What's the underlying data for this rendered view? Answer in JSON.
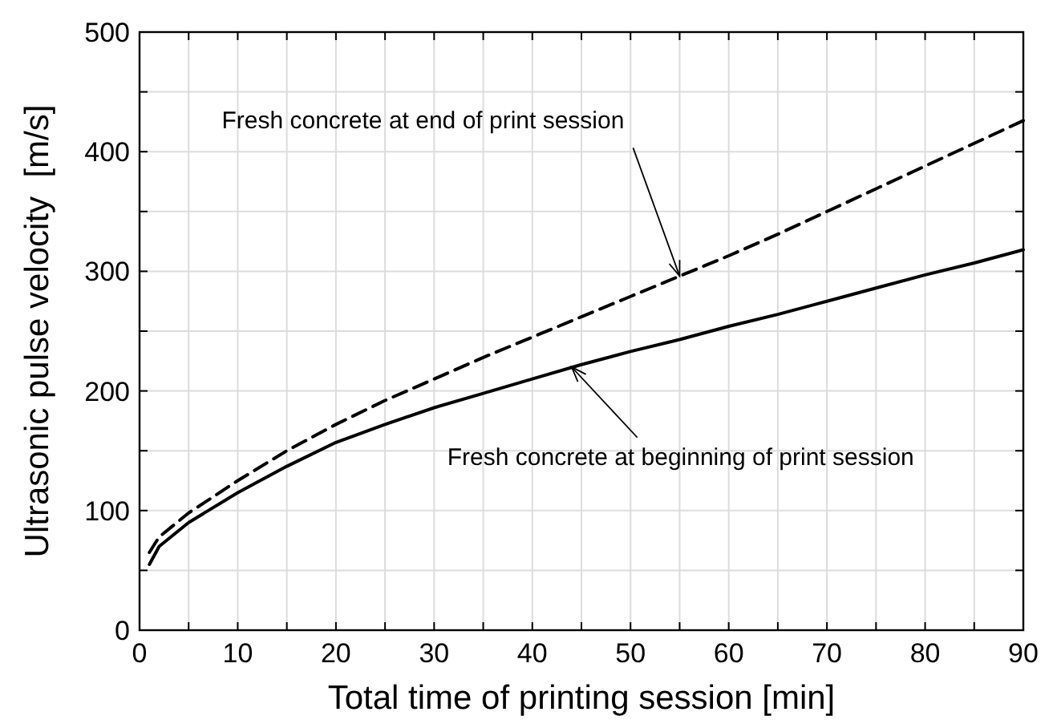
{
  "chart_data": {
    "type": "line",
    "xlabel": "Total time of printing session [min]",
    "ylabel": "Ultrasonic pulse velocity  [m/s]",
    "x": [
      1,
      2,
      5,
      10,
      15,
      20,
      25,
      30,
      35,
      40,
      45,
      50,
      55,
      60,
      65,
      70,
      75,
      80,
      85,
      90
    ],
    "series": [
      {
        "color": "#000000",
        "line_style": "dashed",
        "values": [
          65,
          78,
          98,
          125,
          150,
          172,
          192,
          210,
          228,
          245,
          262,
          279,
          296,
          313,
          331,
          350,
          369,
          388,
          407,
          426
        ]
      },
      {
        "color": "#000000",
        "line_style": "solid",
        "values": [
          55,
          70,
          90,
          115,
          137,
          157,
          172,
          186,
          198,
          210,
          222,
          233,
          243,
          254,
          264,
          275,
          286,
          297,
          307,
          318
        ]
      }
    ],
    "annotations": [
      {
        "text": "Fresh concrete at end of print session",
        "x": 55,
        "y": 296
      },
      {
        "text": "Fresh concrete at beginning of print session",
        "x": 44,
        "y": 220
      }
    ],
    "xlim": [
      0,
      90
    ],
    "ylim": [
      0,
      500
    ],
    "xticks": [
      0,
      {
        "value": 5,
        "label": null
      },
      10,
      {
        "value": 15,
        "label": null
      },
      20,
      {
        "value": 25,
        "label": null
      },
      30,
      {
        "value": 35,
        "label": null
      },
      40,
      {
        "value": 45,
        "label": null
      },
      50,
      {
        "value": 55,
        "label": null
      },
      60,
      {
        "value": 65,
        "label": null
      },
      70,
      {
        "value": 75,
        "label": null
      },
      80,
      {
        "value": 85,
        "label": null
      },
      90
    ],
    "yticks": [
      0,
      {
        "value": 50,
        "label": null
      },
      100,
      {
        "value": 150,
        "label": null
      },
      200,
      {
        "value": 250,
        "label": null
      },
      300,
      {
        "value": 350,
        "label": null
      },
      400,
      {
        "value": 450,
        "label": null
      },
      500
    ],
    "grid": true
  }
}
